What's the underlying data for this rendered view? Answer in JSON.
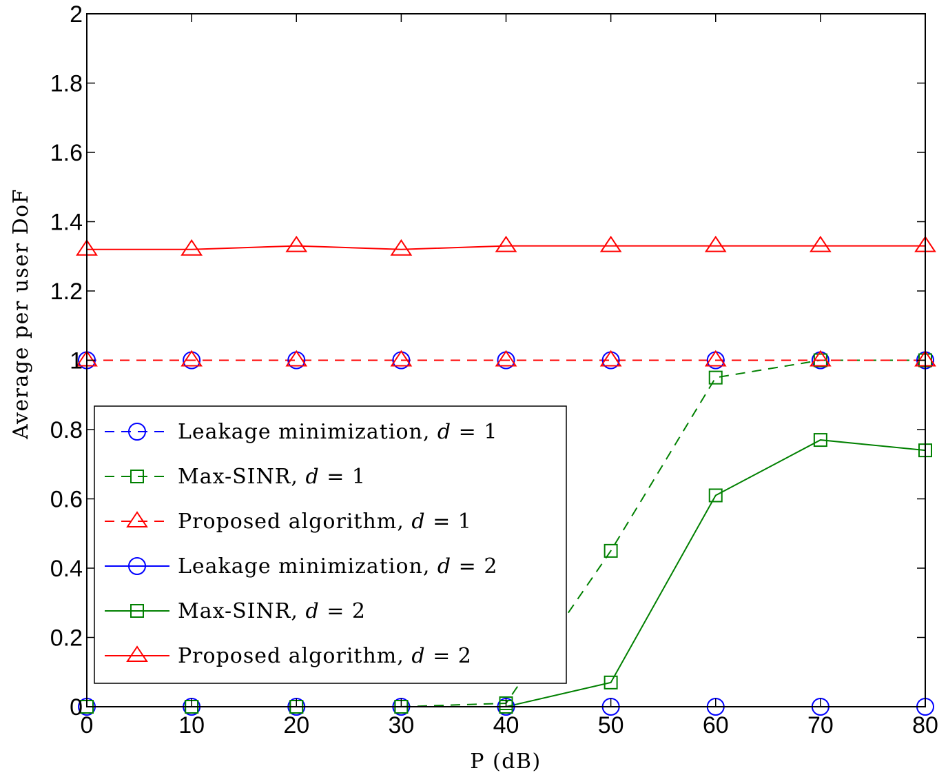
{
  "chart_data": {
    "type": "line",
    "title": "",
    "xlabel": "P (dB)",
    "ylabel": "Average per user DoF",
    "xlim": [
      0,
      80
    ],
    "ylim": [
      0,
      2
    ],
    "x": [
      0,
      10,
      20,
      30,
      40,
      50,
      60,
      70,
      80
    ],
    "x_ticks": [
      "0",
      "10",
      "20",
      "30",
      "40",
      "50",
      "60",
      "70",
      "80"
    ],
    "y_ticks": [
      "0",
      "0.2",
      "0.4",
      "0.6",
      "0.8",
      "1",
      "1.2",
      "1.4",
      "1.6",
      "1.8",
      "2"
    ],
    "grid": false,
    "legend_position": "bottom-left",
    "series": [
      {
        "name": "Leakage minimization, d = 1",
        "color": "#0000ff",
        "line": "dashed",
        "marker": "circle",
        "values": [
          1,
          1,
          1,
          1,
          1,
          1,
          1,
          1,
          1
        ]
      },
      {
        "name": "Max-SINR, d = 1",
        "color": "#008000",
        "line": "dashed",
        "marker": "square",
        "values": [
          0,
          0,
          0,
          0,
          0.01,
          0.45,
          0.95,
          1,
          1
        ]
      },
      {
        "name": "Proposed algorithm, d = 1",
        "color": "#ff0000",
        "line": "dashed",
        "marker": "triangle",
        "values": [
          1,
          1,
          1,
          1,
          1,
          1,
          1,
          1,
          1
        ]
      },
      {
        "name": "Leakage minimization, d = 2",
        "color": "#0000ff",
        "line": "solid",
        "marker": "circle",
        "values": [
          0,
          0,
          0,
          0,
          0,
          0,
          0,
          0,
          0
        ]
      },
      {
        "name": "Max-SINR, d = 2",
        "color": "#008000",
        "line": "solid",
        "marker": "square",
        "values": [
          0,
          0,
          0,
          0,
          0,
          0.07,
          0.61,
          0.77,
          0.74
        ]
      },
      {
        "name": "Proposed algorithm, d = 2",
        "color": "#ff0000",
        "line": "solid",
        "marker": "triangle",
        "values": [
          1.32,
          1.32,
          1.33,
          1.32,
          1.33,
          1.33,
          1.33,
          1.33,
          1.33
        ]
      }
    ]
  },
  "legend": {
    "items": [
      {
        "label_prefix": "Leakage minimization, ",
        "var": "d",
        "label_suffix": " = 1"
      },
      {
        "label_prefix": "Max-SINR, ",
        "var": "d",
        "label_suffix": " = 1"
      },
      {
        "label_prefix": "Proposed algorithm, ",
        "var": "d",
        "label_suffix": " = 1"
      },
      {
        "label_prefix": "Leakage minimization, ",
        "var": "d",
        "label_suffix": " = 2"
      },
      {
        "label_prefix": "Max-SINR, ",
        "var": "d",
        "label_suffix": " = 2"
      },
      {
        "label_prefix": "Proposed algorithm, ",
        "var": "d",
        "label_suffix": " = 2"
      }
    ]
  }
}
